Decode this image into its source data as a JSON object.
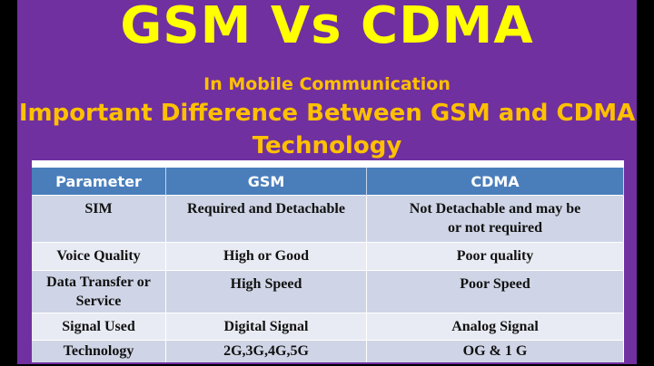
{
  "title": "GSM Vs CDMA",
  "subtitle": "In Mobile  Communication",
  "heading": "Important Difference Between GSM and CDMA Technology",
  "colors": {
    "background": "#7030a0",
    "title": "#ffff00",
    "heading": "#ffc000",
    "table_header": "#4a7ebb"
  },
  "table": {
    "headers": [
      "Parameter",
      "GSM",
      "CDMA"
    ],
    "rows": [
      [
        "SIM",
        "Required and Detachable",
        "Not Detachable and may be or not required"
      ],
      [
        "Voice Quality",
        "High or Good",
        "Poor quality"
      ],
      [
        "Data Transfer or Service",
        "High Speed",
        "Poor Speed"
      ],
      [
        "Signal Used",
        "Digital Signal",
        "Analog Signal"
      ],
      [
        "Technology",
        "2G,3G,4G,5G",
        "OG & 1 G"
      ]
    ]
  }
}
